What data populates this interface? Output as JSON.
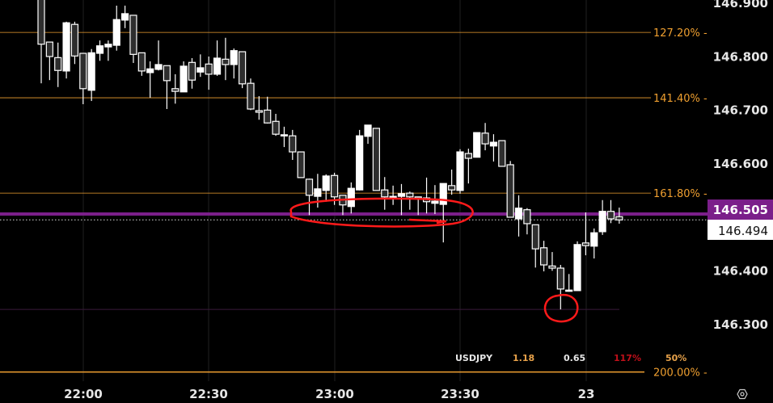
{
  "symbol": "USDJPY",
  "indicators": [
    {
      "value": "1.18",
      "color": "#e8a24a"
    },
    {
      "value": "0.65",
      "color": "#e6e6e6"
    },
    {
      "value": "117%",
      "color": "#c0101a"
    },
    {
      "value": "50%",
      "color": "#e8a24a"
    }
  ],
  "colors": {
    "background": "#000000",
    "fib": "#f0a030",
    "price_line": "#7b1f8a",
    "annotation": "#ff1a1a",
    "bull": "#ffffff",
    "bear": "#2e2e2e"
  },
  "chart_data": {
    "type": "candlestick",
    "ylim": [
      146.25,
      146.905
    ],
    "y_ticks": [
      "146.900",
      "146.800",
      "146.700",
      "146.600",
      "146.400",
      "146.300"
    ],
    "y_tick_values": [
      146.9,
      146.8,
      146.7,
      146.6,
      146.4,
      146.3
    ],
    "x_ticks": [
      "22:00",
      "22:30",
      "23:00",
      "23:30",
      "23"
    ],
    "candle_interval": "2 min",
    "fib_levels": [
      {
        "label": "127.20%",
        "price": 146.844
      },
      {
        "label": "141.40%",
        "price": 146.722
      },
      {
        "label": "161.80%",
        "price": 146.544
      },
      {
        "label": "200.00%",
        "price": 146.21
      }
    ],
    "support_line": 146.327,
    "marked_price": {
      "label": "146.505",
      "price": 146.505
    },
    "last_price": {
      "label": "146.494",
      "price": 146.494
    },
    "candles_ohlc": [
      [
        146.92,
        146.935,
        146.749,
        146.822
      ],
      [
        146.826,
        146.826,
        146.755,
        146.799
      ],
      [
        146.797,
        146.825,
        146.742,
        146.773
      ],
      [
        146.772,
        146.864,
        146.758,
        146.862
      ],
      [
        146.859,
        146.864,
        146.785,
        146.8
      ],
      [
        146.805,
        146.805,
        146.71,
        146.739
      ],
      [
        146.736,
        146.813,
        146.716,
        146.806
      ],
      [
        146.805,
        146.829,
        146.791,
        146.819
      ],
      [
        146.817,
        146.829,
        146.791,
        146.822
      ],
      [
        146.82,
        146.894,
        146.81,
        146.868
      ],
      [
        146.867,
        146.894,
        146.852,
        146.879
      ],
      [
        146.876,
        146.876,
        146.787,
        146.803
      ],
      [
        146.806,
        146.806,
        146.763,
        146.772
      ],
      [
        146.769,
        146.79,
        146.722,
        146.776
      ],
      [
        146.775,
        146.829,
        146.773,
        146.784
      ],
      [
        146.782,
        146.782,
        146.701,
        146.754
      ],
      [
        146.739,
        146.766,
        146.711,
        146.734
      ],
      [
        146.733,
        146.79,
        146.733,
        146.781
      ],
      [
        146.788,
        146.796,
        146.739,
        146.755
      ],
      [
        146.77,
        146.803,
        146.761,
        146.778
      ],
      [
        146.785,
        146.799,
        146.737,
        146.766
      ],
      [
        146.766,
        146.829,
        146.763,
        146.796
      ],
      [
        146.794,
        146.834,
        146.755,
        146.784
      ],
      [
        146.784,
        146.814,
        146.758,
        146.81
      ],
      [
        146.808,
        146.808,
        146.74,
        146.748
      ],
      [
        146.749,
        146.758,
        146.699,
        146.701
      ],
      [
        146.698,
        146.725,
        146.681,
        146.695
      ],
      [
        146.699,
        146.724,
        146.674,
        146.675
      ],
      [
        146.678,
        146.692,
        146.651,
        146.654
      ],
      [
        146.653,
        146.668,
        146.63,
        146.653
      ],
      [
        146.651,
        146.662,
        146.606,
        146.621
      ],
      [
        146.621,
        146.621,
        146.573,
        146.573
      ],
      [
        146.57,
        146.571,
        146.503,
        146.54
      ],
      [
        146.538,
        146.58,
        146.517,
        146.552
      ],
      [
        146.549,
        146.579,
        146.528,
        146.576
      ],
      [
        146.577,
        146.582,
        146.522,
        146.537
      ],
      [
        146.54,
        146.54,
        146.503,
        146.522
      ],
      [
        146.519,
        146.564,
        146.506,
        146.553
      ],
      [
        146.55,
        146.662,
        146.549,
        146.651
      ],
      [
        146.65,
        146.671,
        146.636,
        146.671
      ],
      [
        146.665,
        146.665,
        146.549,
        146.549
      ],
      [
        146.55,
        146.574,
        146.513,
        146.537
      ],
      [
        146.534,
        146.558,
        146.522,
        146.538
      ],
      [
        146.538,
        146.561,
        146.503,
        146.543
      ],
      [
        146.544,
        146.547,
        146.513,
        146.537
      ],
      [
        146.537,
        146.537,
        146.503,
        146.535
      ],
      [
        146.535,
        146.573,
        146.506,
        146.528
      ],
      [
        146.525,
        146.559,
        146.505,
        146.529
      ],
      [
        146.523,
        146.562,
        146.452,
        146.562
      ],
      [
        146.558,
        146.588,
        146.541,
        146.55
      ],
      [
        146.549,
        146.626,
        146.543,
        146.621
      ],
      [
        146.618,
        146.627,
        146.562,
        146.609
      ],
      [
        146.611,
        146.657,
        146.611,
        146.657
      ],
      [
        146.656,
        146.675,
        146.624,
        146.636
      ],
      [
        146.632,
        146.654,
        146.603,
        146.639
      ],
      [
        146.642,
        146.642,
        146.594,
        146.594
      ],
      [
        146.597,
        146.604,
        146.499,
        146.499
      ],
      [
        146.496,
        146.54,
        146.463,
        146.516
      ],
      [
        146.513,
        146.516,
        146.467,
        146.487
      ],
      [
        146.485,
        146.485,
        146.405,
        146.44
      ],
      [
        146.442,
        146.455,
        146.398,
        146.41
      ],
      [
        146.408,
        146.434,
        146.399,
        146.404
      ],
      [
        146.404,
        146.41,
        146.327,
        146.365
      ],
      [
        146.362,
        146.393,
        146.36,
        146.363
      ],
      [
        146.362,
        146.454,
        146.362,
        146.448
      ],
      [
        146.451,
        146.508,
        146.428,
        146.446
      ],
      [
        146.445,
        146.478,
        146.422,
        146.47
      ],
      [
        146.472,
        146.531,
        146.466,
        146.51
      ],
      [
        146.51,
        146.531,
        146.488,
        146.496
      ],
      [
        146.5,
        146.517,
        146.487,
        146.494
      ]
    ]
  },
  "icons": {
    "settings": "hexagon-settings-icon"
  }
}
